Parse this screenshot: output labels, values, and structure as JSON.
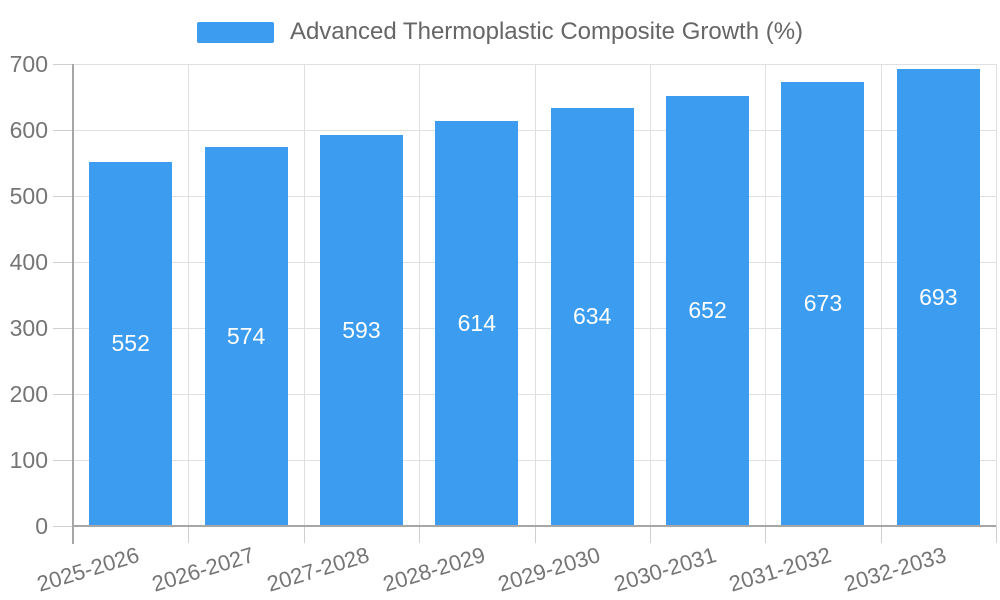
{
  "chart_data": {
    "type": "bar",
    "title": "",
    "legend": {
      "label": "Advanced Thermoplastic Composite Growth (%)",
      "position": "top"
    },
    "categories": [
      "2025-2026",
      "2026-2027",
      "2027-2028",
      "2028-2029",
      "2029-2030",
      "2030-2031",
      "2031-2032",
      "2032-2033"
    ],
    "values": [
      552,
      574,
      593,
      614,
      634,
      652,
      673,
      693
    ],
    "xlabel": "",
    "ylabel": "",
    "ylim": [
      0,
      700
    ],
    "yticks": [
      0,
      100,
      200,
      300,
      400,
      500,
      600,
      700
    ],
    "grid": true,
    "value_labels": "centered-inside-bars",
    "x_tick_label_rotation_deg": -17,
    "colors": {
      "bar": "#3B9CF0",
      "value_label": "#FFFFFF",
      "axis_text": "#757575",
      "legend_text": "#666666",
      "gridline": "#E0E0E0",
      "tick": "#CFCFCF",
      "axis_line": "#A6A6A6",
      "background": "#FFFFFF"
    }
  }
}
